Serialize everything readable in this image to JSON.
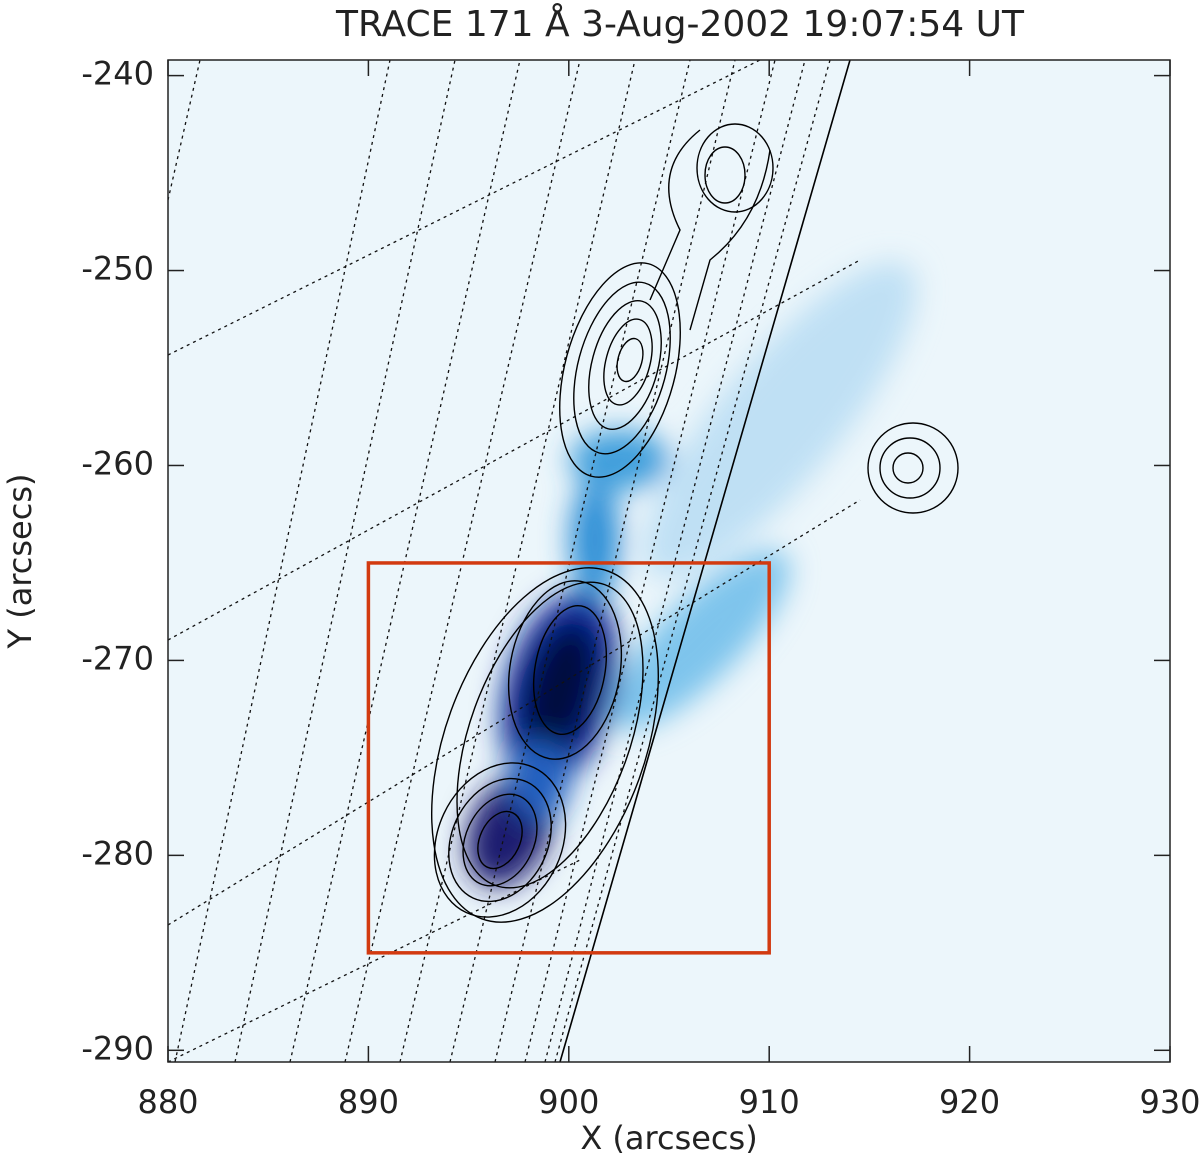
{
  "chart_data": {
    "type": "image",
    "title": "TRACE 171 Å  3-Aug-2002 19:07:54 UT",
    "x_label": "X (arcsecs)",
    "y_label": "Y (arcsecs)",
    "xlim": [
      880,
      930
    ],
    "ylim": [
      -290.6,
      -239.2
    ],
    "xticks": [
      880,
      890,
      900,
      910,
      920,
      930
    ],
    "yticks": [
      -290,
      -280,
      -270,
      -260,
      -250,
      -240
    ],
    "box": {
      "x": [
        890,
        910
      ],
      "y": [
        -285,
        -265
      ],
      "color": "#d23a10"
    }
  }
}
